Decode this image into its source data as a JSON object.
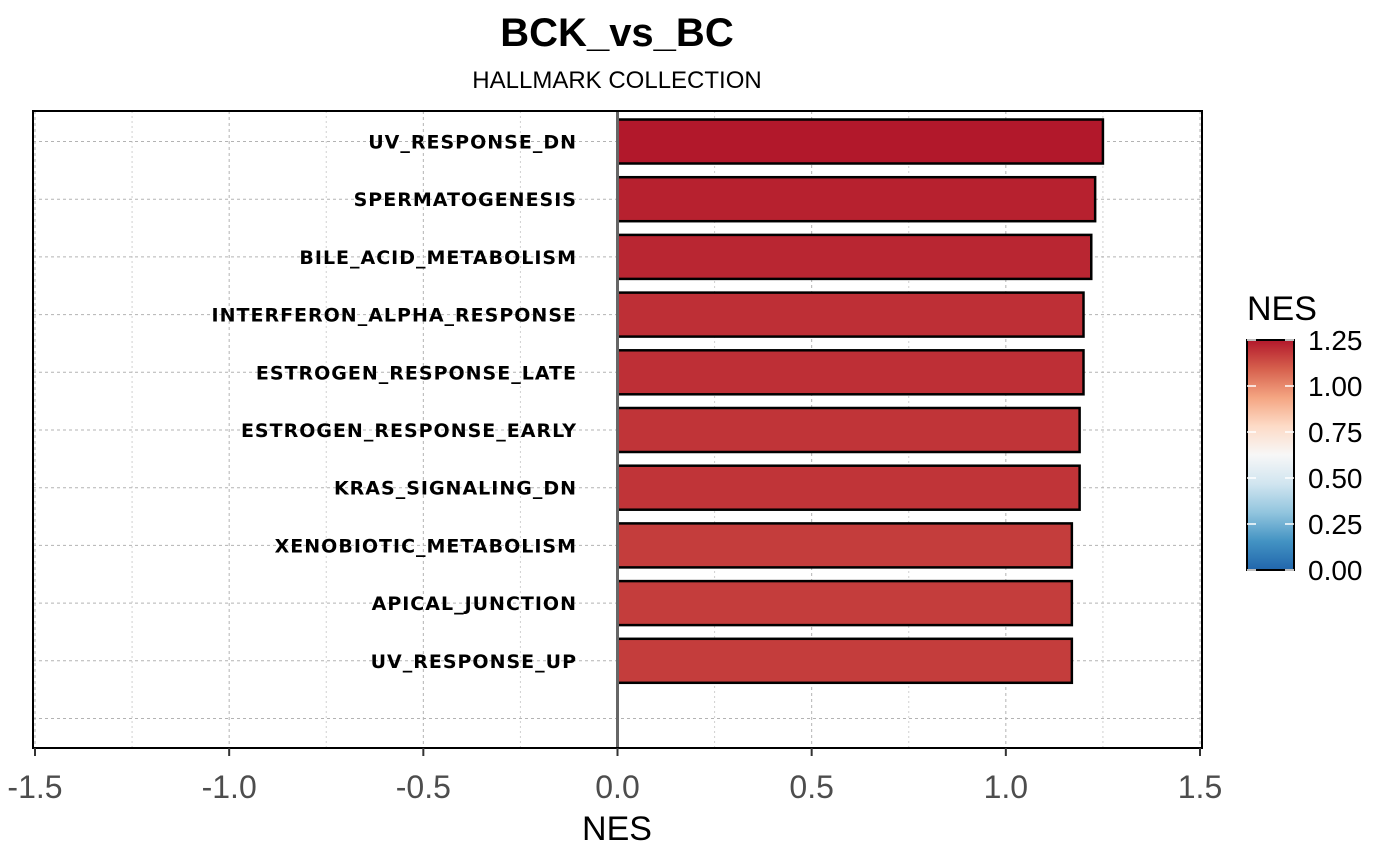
{
  "chart_data": {
    "type": "bar",
    "orientation": "horizontal",
    "title": "BCK_vs_BC",
    "subtitle": "HALLMARK COLLECTION",
    "xlabel": "NES",
    "ylabel": "",
    "xlim": [
      -1.5,
      1.5
    ],
    "xticks": [
      "-1.5",
      "-1.0",
      "-0.5",
      "0.0",
      "0.5",
      "1.0",
      "1.5"
    ],
    "grid": true,
    "categories": [
      "UV_RESPONSE_DN",
      "SPERMATOGENESIS",
      "BILE_ACID_METABOLISM",
      "INTERFERON_ALPHA_RESPONSE",
      "ESTROGEN_RESPONSE_LATE",
      "ESTROGEN_RESPONSE_EARLY",
      "KRAS_SIGNALING_DN",
      "XENOBIOTIC_METABOLISM",
      "APICAL_JUNCTION",
      "UV_RESPONSE_UP"
    ],
    "values": [
      1.25,
      1.23,
      1.22,
      1.2,
      1.2,
      1.19,
      1.19,
      1.17,
      1.17,
      1.17
    ],
    "legend": {
      "title": "NES",
      "placement": "right",
      "range": [
        0,
        1.25
      ],
      "labels": [
        "1.25",
        "1.00",
        "0.75",
        "0.50",
        "0.25",
        "0.00"
      ],
      "colors": {
        "low": "#2166ac",
        "mid": "#f7f7f7",
        "high": "#b2182b",
        "stops": [
          "#2166ac",
          "#4393c3",
          "#92c5de",
          "#d1e5f0",
          "#f7f7f7",
          "#fddbc7",
          "#f4a582",
          "#d6604d",
          "#b2182b"
        ]
      }
    }
  }
}
